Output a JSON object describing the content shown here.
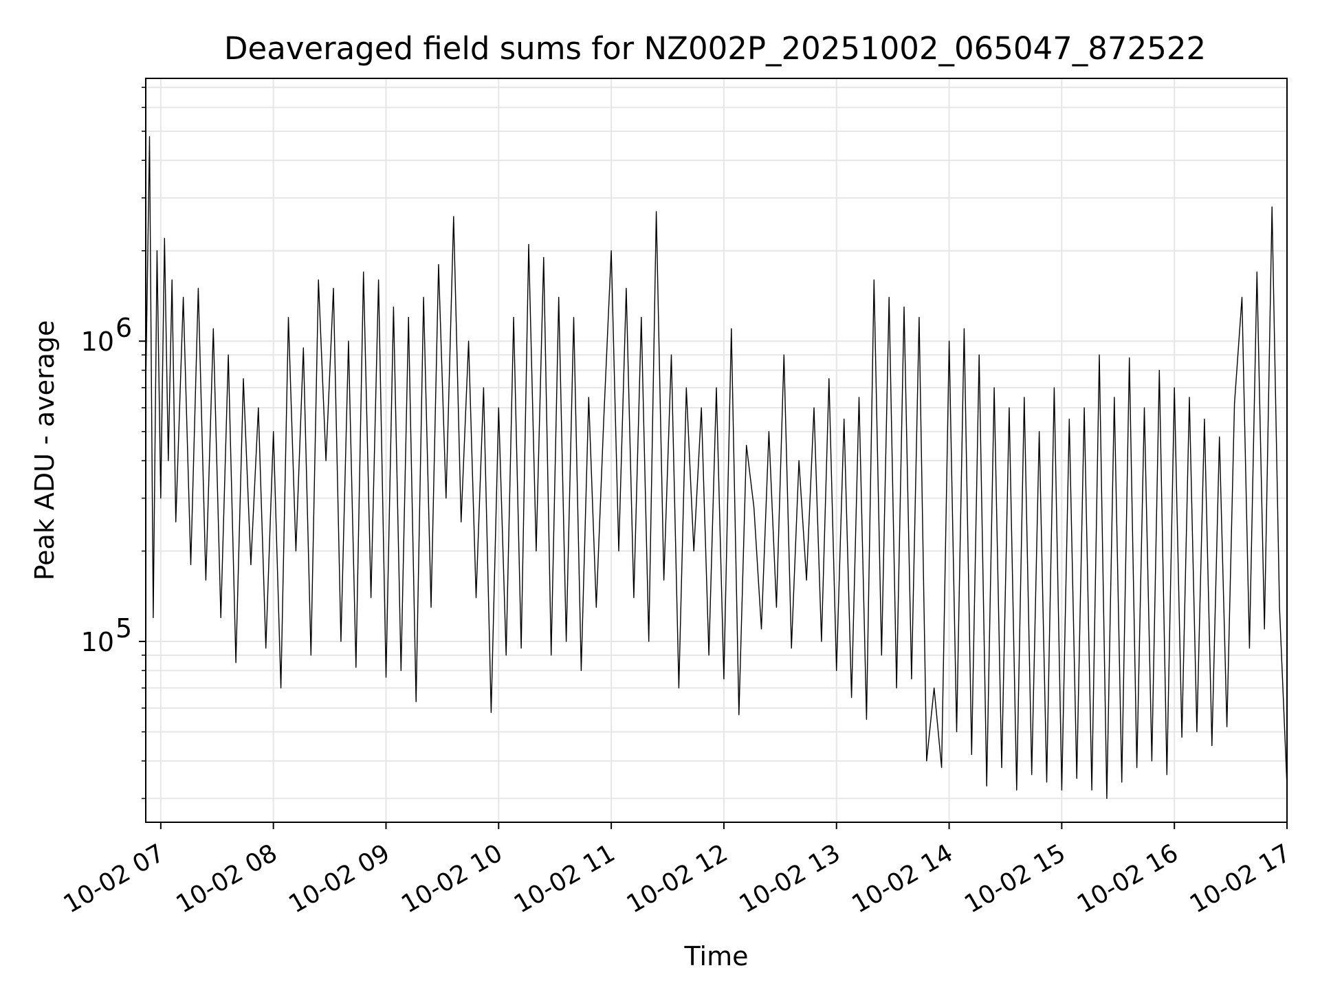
{
  "chart_data": {
    "type": "line",
    "title": "Deaveraged field sums for NZ002P_20251002_065047_872522",
    "xlabel": "Time",
    "ylabel": "Peak ADU - average",
    "y_scale": "log",
    "xlim": [
      "2025-10-02 06:52",
      "2025-10-02 17:00"
    ],
    "ylim": [
      25000,
      7500000
    ],
    "grid": true,
    "x_ticks": [
      {
        "value": "2025-10-02 07:00",
        "label": "10-02 07"
      },
      {
        "value": "2025-10-02 08:00",
        "label": "10-02 08"
      },
      {
        "value": "2025-10-02 09:00",
        "label": "10-02 09"
      },
      {
        "value": "2025-10-02 10:00",
        "label": "10-02 10"
      },
      {
        "value": "2025-10-02 11:00",
        "label": "10-02 11"
      },
      {
        "value": "2025-10-02 12:00",
        "label": "10-02 12"
      },
      {
        "value": "2025-10-02 13:00",
        "label": "10-02 13"
      },
      {
        "value": "2025-10-02 14:00",
        "label": "10-02 14"
      },
      {
        "value": "2025-10-02 15:00",
        "label": "10-02 15"
      },
      {
        "value": "2025-10-02 16:00",
        "label": "10-02 16"
      },
      {
        "value": "2025-10-02 17:00",
        "label": "10-02 17"
      }
    ],
    "y_ticks": [
      {
        "value": 100000,
        "base": "10",
        "exp": "5"
      },
      {
        "value": 1000000,
        "base": "10",
        "exp": "6"
      }
    ],
    "series": [
      {
        "color": "#000000",
        "x": [
          "2025-10-02 06:52",
          "2025-10-02 06:54",
          "2025-10-02 06:56",
          "2025-10-02 06:58",
          "2025-10-02 07:00",
          "2025-10-02 07:02",
          "2025-10-02 07:04",
          "2025-10-02 07:06",
          "2025-10-02 07:08",
          "2025-10-02 07:12",
          "2025-10-02 07:16",
          "2025-10-02 07:20",
          "2025-10-02 07:24",
          "2025-10-02 07:28",
          "2025-10-02 07:32",
          "2025-10-02 07:36",
          "2025-10-02 07:40",
          "2025-10-02 07:44",
          "2025-10-02 07:48",
          "2025-10-02 07:52",
          "2025-10-02 07:56",
          "2025-10-02 08:00",
          "2025-10-02 08:04",
          "2025-10-02 08:08",
          "2025-10-02 08:12",
          "2025-10-02 08:16",
          "2025-10-02 08:20",
          "2025-10-02 08:24",
          "2025-10-02 08:28",
          "2025-10-02 08:32",
          "2025-10-02 08:36",
          "2025-10-02 08:40",
          "2025-10-02 08:44",
          "2025-10-02 08:48",
          "2025-10-02 08:52",
          "2025-10-02 08:56",
          "2025-10-02 09:00",
          "2025-10-02 09:04",
          "2025-10-02 09:08",
          "2025-10-02 09:12",
          "2025-10-02 09:16",
          "2025-10-02 09:20",
          "2025-10-02 09:24",
          "2025-10-02 09:28",
          "2025-10-02 09:32",
          "2025-10-02 09:36",
          "2025-10-02 09:40",
          "2025-10-02 09:44",
          "2025-10-02 09:48",
          "2025-10-02 09:52",
          "2025-10-02 09:56",
          "2025-10-02 10:00",
          "2025-10-02 10:04",
          "2025-10-02 10:08",
          "2025-10-02 10:12",
          "2025-10-02 10:16",
          "2025-10-02 10:20",
          "2025-10-02 10:24",
          "2025-10-02 10:28",
          "2025-10-02 10:32",
          "2025-10-02 10:36",
          "2025-10-02 10:40",
          "2025-10-02 10:44",
          "2025-10-02 10:48",
          "2025-10-02 10:52",
          "2025-10-02 10:56",
          "2025-10-02 11:00",
          "2025-10-02 11:04",
          "2025-10-02 11:08",
          "2025-10-02 11:12",
          "2025-10-02 11:16",
          "2025-10-02 11:20",
          "2025-10-02 11:24",
          "2025-10-02 11:28",
          "2025-10-02 11:32",
          "2025-10-02 11:36",
          "2025-10-02 11:40",
          "2025-10-02 11:44",
          "2025-10-02 11:48",
          "2025-10-02 11:52",
          "2025-10-02 11:56",
          "2025-10-02 12:00",
          "2025-10-02 12:04",
          "2025-10-02 12:08",
          "2025-10-02 12:12",
          "2025-10-02 12:16",
          "2025-10-02 12:20",
          "2025-10-02 12:24",
          "2025-10-02 12:28",
          "2025-10-02 12:32",
          "2025-10-02 12:36",
          "2025-10-02 12:40",
          "2025-10-02 12:44",
          "2025-10-02 12:48",
          "2025-10-02 12:52",
          "2025-10-02 12:56",
          "2025-10-02 13:00",
          "2025-10-02 13:04",
          "2025-10-02 13:08",
          "2025-10-02 13:12",
          "2025-10-02 13:16",
          "2025-10-02 13:20",
          "2025-10-02 13:24",
          "2025-10-02 13:28",
          "2025-10-02 13:32",
          "2025-10-02 13:36",
          "2025-10-02 13:40",
          "2025-10-02 13:44",
          "2025-10-02 13:48",
          "2025-10-02 13:52",
          "2025-10-02 13:56",
          "2025-10-02 14:00",
          "2025-10-02 14:04",
          "2025-10-02 14:08",
          "2025-10-02 14:12",
          "2025-10-02 14:16",
          "2025-10-02 14:20",
          "2025-10-02 14:24",
          "2025-10-02 14:28",
          "2025-10-02 14:32",
          "2025-10-02 14:36",
          "2025-10-02 14:40",
          "2025-10-02 14:44",
          "2025-10-02 14:48",
          "2025-10-02 14:52",
          "2025-10-02 14:56",
          "2025-10-02 15:00",
          "2025-10-02 15:04",
          "2025-10-02 15:08",
          "2025-10-02 15:12",
          "2025-10-02 15:16",
          "2025-10-02 15:20",
          "2025-10-02 15:24",
          "2025-10-02 15:28",
          "2025-10-02 15:32",
          "2025-10-02 15:36",
          "2025-10-02 15:40",
          "2025-10-02 15:44",
          "2025-10-02 15:48",
          "2025-10-02 15:52",
          "2025-10-02 15:56",
          "2025-10-02 16:00",
          "2025-10-02 16:04",
          "2025-10-02 16:08",
          "2025-10-02 16:12",
          "2025-10-02 16:16",
          "2025-10-02 16:20",
          "2025-10-02 16:24",
          "2025-10-02 16:28",
          "2025-10-02 16:32",
          "2025-10-02 16:36",
          "2025-10-02 16:40",
          "2025-10-02 16:44",
          "2025-10-02 16:48",
          "2025-10-02 16:52",
          "2025-10-02 16:56",
          "2025-10-02 17:00"
        ],
        "y": [
          700000,
          4800000,
          120000,
          2000000,
          300000,
          2200000,
          400000,
          1600000,
          250000,
          1400000,
          180000,
          1500000,
          160000,
          1100000,
          120000,
          900000,
          85000,
          750000,
          180000,
          600000,
          95000,
          500000,
          70000,
          1200000,
          200000,
          950000,
          90000,
          1600000,
          400000,
          1500000,
          100000,
          1000000,
          82000,
          1700000,
          140000,
          1600000,
          76000,
          1300000,
          80000,
          1200000,
          63000,
          1400000,
          130000,
          1800000,
          300000,
          2600000,
          250000,
          1000000,
          140000,
          700000,
          58000,
          600000,
          90000,
          1200000,
          95000,
          2100000,
          200000,
          1900000,
          90000,
          1400000,
          100000,
          1200000,
          80000,
          650000,
          130000,
          550000,
          2000000,
          200000,
          1500000,
          140000,
          1200000,
          100000,
          2700000,
          160000,
          900000,
          70000,
          700000,
          200000,
          600000,
          90000,
          700000,
          75000,
          1100000,
          57000,
          450000,
          280000,
          110000,
          500000,
          130000,
          900000,
          95000,
          400000,
          160000,
          600000,
          100000,
          750000,
          80000,
          550000,
          65000,
          650000,
          55000,
          1600000,
          90000,
          1400000,
          70000,
          1300000,
          75000,
          1200000,
          40000,
          70000,
          38000,
          1000000,
          50000,
          1100000,
          42000,
          900000,
          33000,
          700000,
          38000,
          600000,
          32000,
          650000,
          36000,
          500000,
          34000,
          700000,
          32000,
          550000,
          35000,
          600000,
          32000,
          900000,
          30000,
          650000,
          34000,
          880000,
          38000,
          600000,
          40000,
          800000,
          36000,
          700000,
          48000,
          650000,
          50000,
          550000,
          45000,
          480000,
          52000,
          620000,
          1400000,
          95000,
          1700000,
          110000,
          2800000,
          130000,
          33000
        ]
      }
    ]
  }
}
